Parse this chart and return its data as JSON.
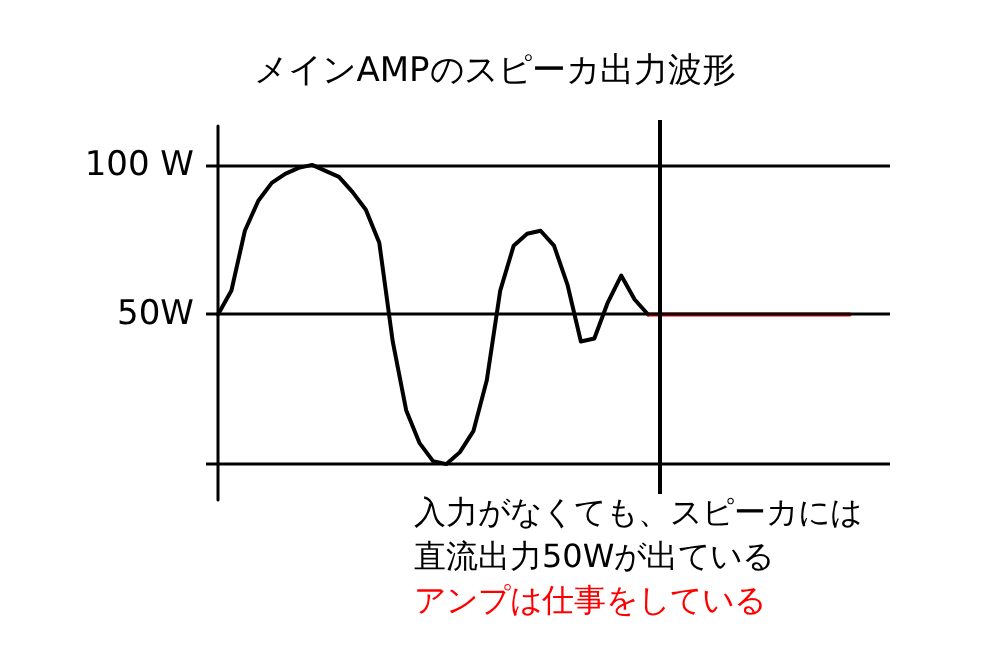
{
  "chart_data": {
    "type": "line",
    "title": "メインAMPのスピーカ出力波形",
    "categories": [
      null,
      null,
      null,
      null,
      null,
      null,
      null,
      null,
      null,
      null,
      null,
      null,
      null,
      null,
      null,
      null,
      null,
      null,
      null,
      null,
      null,
      null,
      null,
      null,
      null,
      null,
      null,
      null,
      null,
      null,
      null,
      null,
      null,
      null,
      null,
      null,
      null,
      null,
      null,
      null,
      null,
      null,
      null,
      null,
      null,
      null,
      null,
      null,
      null,
      null,
      null
    ],
    "ylim": [
      -12,
      113
    ],
    "yticks": [
      {
        "value": 0,
        "label": null
      },
      {
        "value": 50,
        "label": "50W"
      },
      {
        "value": 100,
        "label": "100 W"
      }
    ],
    "tick_labels": "y",
    "grid": "y",
    "line_style": "solid",
    "series": [
      {
        "color": "#000000",
        "values": [
          50,
          58,
          78,
          88,
          94,
          97,
          99,
          100,
          98,
          96,
          91,
          85,
          74,
          41,
          18,
          7,
          1,
          0,
          4,
          11,
          28,
          58,
          73,
          77,
          78,
          73,
          60,
          41,
          42,
          54,
          63,
          55,
          50,
          null,
          null,
          null,
          null,
          null,
          null,
          null,
          null,
          null,
          null,
          null,
          null,
          null,
          null,
          null,
          null,
          null,
          null
        ]
      },
      {
        "color": "#ff0000",
        "values": [
          null,
          null,
          null,
          null,
          null,
          null,
          null,
          null,
          null,
          null,
          null,
          null,
          null,
          null,
          null,
          null,
          null,
          null,
          null,
          null,
          null,
          null,
          null,
          null,
          null,
          null,
          null,
          null,
          null,
          null,
          null,
          null,
          50,
          50,
          50,
          50,
          50,
          50,
          50,
          50,
          50,
          50,
          50,
          50,
          50,
          50,
          50,
          50,
          null,
          null,
          null
        ]
      }
    ],
    "annotations": [
      "入力がなくても、スピーカには",
      "直流出力50Wが出ている",
      "アンプは仕事をしている"
    ]
  }
}
